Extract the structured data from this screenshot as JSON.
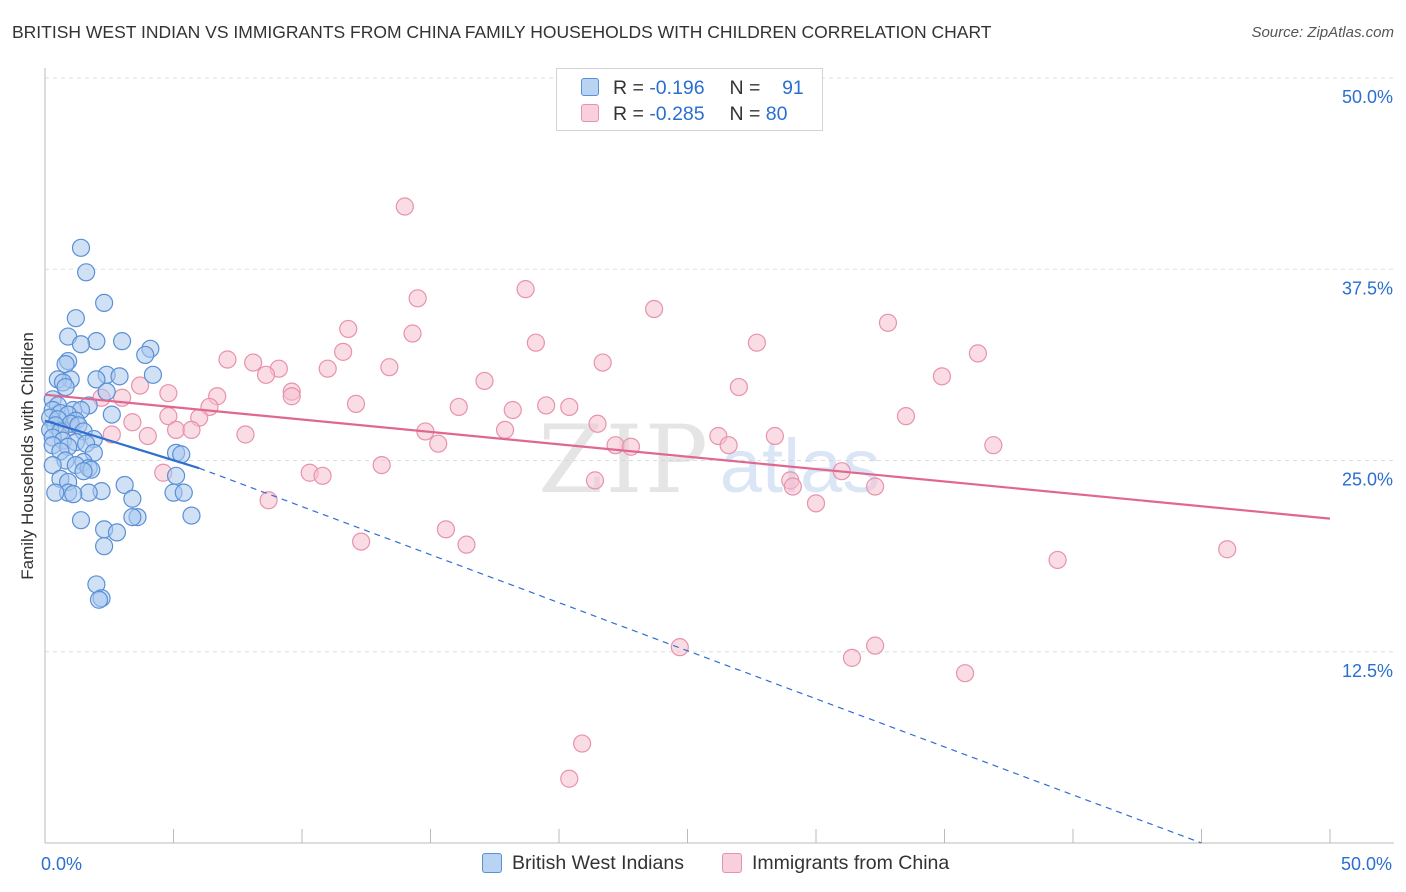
{
  "title": "BRITISH WEST INDIAN VS IMMIGRANTS FROM CHINA FAMILY HOUSEHOLDS WITH CHILDREN CORRELATION CHART",
  "source": "Source: ZipAtlas.com",
  "watermark": {
    "zip": "ZIP",
    "atlas": "atlas"
  },
  "legend": {
    "series1": {
      "r_label": "R = ",
      "r_value": "-0.196",
      "n_label": "N = ",
      "n_value": "91"
    },
    "series2": {
      "r_label": "R = ",
      "r_value": "-0.285",
      "n_label": "N = ",
      "n_value": "80"
    }
  },
  "bottom_legend": {
    "series1": "British West Indians",
    "series2": "Immigrants from China"
  },
  "colors": {
    "blue_fill": "#a9c8ee",
    "blue_stroke": "#5a90d6",
    "blue_line": "#2f6fd0",
    "pink_fill": "#f5c0d0",
    "pink_stroke": "#e892ad",
    "pink_line": "#e0688f",
    "tick_text": "#2a6fd0",
    "grid": "#dddddd"
  },
  "chart_data": {
    "type": "scatter",
    "xlabel": "",
    "ylabel": "Family Households with Children",
    "xlim": [
      0,
      50
    ],
    "ylim": [
      0,
      50
    ],
    "x_tick_labels": [
      {
        "value": 0,
        "label": "0.0%"
      },
      {
        "value": 50,
        "label": "50.0%"
      }
    ],
    "y_tick_labels": [
      {
        "value": 50,
        "label": "50.0%"
      },
      {
        "value": 37.5,
        "label": "37.5%"
      },
      {
        "value": 25,
        "label": "25.0%"
      },
      {
        "value": 12.5,
        "label": "12.5%"
      }
    ],
    "grid": "horizontal dashed",
    "legend_position": "top-center",
    "series": [
      {
        "name": "British West Indians",
        "r": -0.196,
        "n": 91,
        "trend": {
          "x": [
            0,
            6.0
          ],
          "y": [
            27.6,
            24.5
          ]
        },
        "trend_extension": {
          "x": [
            6.0,
            45.0
          ],
          "y": [
            24.5,
            0
          ]
        },
        "points": [
          [
            1.4,
            38.9
          ],
          [
            1.6,
            37.3
          ],
          [
            2.3,
            35.3
          ],
          [
            1.2,
            34.3
          ],
          [
            0.9,
            33.1
          ],
          [
            2.0,
            32.8
          ],
          [
            3.0,
            32.8
          ],
          [
            1.4,
            32.6
          ],
          [
            4.1,
            32.3
          ],
          [
            3.9,
            31.9
          ],
          [
            0.9,
            31.5
          ],
          [
            0.8,
            31.3
          ],
          [
            4.2,
            30.6
          ],
          [
            2.4,
            30.6
          ],
          [
            2.9,
            30.5
          ],
          [
            1.0,
            30.3
          ],
          [
            0.5,
            30.3
          ],
          [
            2.0,
            30.3
          ],
          [
            0.7,
            30.1
          ],
          [
            0.8,
            29.8
          ],
          [
            2.4,
            29.5
          ],
          [
            0.3,
            29.0
          ],
          [
            0.5,
            28.6
          ],
          [
            1.7,
            28.6
          ],
          [
            0.3,
            28.3
          ],
          [
            1.1,
            28.3
          ],
          [
            1.4,
            28.3
          ],
          [
            0.6,
            28.1
          ],
          [
            0.9,
            28.0
          ],
          [
            2.6,
            28.0
          ],
          [
            0.2,
            27.8
          ],
          [
            0.5,
            27.7
          ],
          [
            1.2,
            27.6
          ],
          [
            1.0,
            27.4
          ],
          [
            0.4,
            27.3
          ],
          [
            1.3,
            27.3
          ],
          [
            0.2,
            27.0
          ],
          [
            0.6,
            26.9
          ],
          [
            1.5,
            26.9
          ],
          [
            0.3,
            26.5
          ],
          [
            1.9,
            26.4
          ],
          [
            0.7,
            26.3
          ],
          [
            1.2,
            26.2
          ],
          [
            1.6,
            26.1
          ],
          [
            0.3,
            26.0
          ],
          [
            0.9,
            25.9
          ],
          [
            0.6,
            25.6
          ],
          [
            1.9,
            25.5
          ],
          [
            5.1,
            25.5
          ],
          [
            5.3,
            25.4
          ],
          [
            0.8,
            25.0
          ],
          [
            1.5,
            24.9
          ],
          [
            1.2,
            24.7
          ],
          [
            0.3,
            24.7
          ],
          [
            1.7,
            24.5
          ],
          [
            1.8,
            24.4
          ],
          [
            1.5,
            24.3
          ],
          [
            5.1,
            24.0
          ],
          [
            0.6,
            23.8
          ],
          [
            0.9,
            23.6
          ],
          [
            3.1,
            23.4
          ],
          [
            2.2,
            23.0
          ],
          [
            0.9,
            22.9
          ],
          [
            0.4,
            22.9
          ],
          [
            1.7,
            22.9
          ],
          [
            5.0,
            22.9
          ],
          [
            5.4,
            22.9
          ],
          [
            1.1,
            22.8
          ],
          [
            3.4,
            22.5
          ],
          [
            5.7,
            21.4
          ],
          [
            3.6,
            21.3
          ],
          [
            3.4,
            21.3
          ],
          [
            1.4,
            21.1
          ],
          [
            2.3,
            20.5
          ],
          [
            2.8,
            20.3
          ],
          [
            2.3,
            19.4
          ],
          [
            2.0,
            16.9
          ],
          [
            2.2,
            16.0
          ],
          [
            2.1,
            15.9
          ]
        ]
      },
      {
        "name": "Immigrants from China",
        "r": -0.285,
        "n": 80,
        "trend": {
          "x": [
            0,
            50
          ],
          "y": [
            29.3,
            21.2
          ]
        },
        "points": [
          [
            14.0,
            41.6
          ],
          [
            18.7,
            36.2
          ],
          [
            14.5,
            35.6
          ],
          [
            23.7,
            34.9
          ],
          [
            32.8,
            34.0
          ],
          [
            11.8,
            33.6
          ],
          [
            14.3,
            33.3
          ],
          [
            19.1,
            32.7
          ],
          [
            27.7,
            32.7
          ],
          [
            11.6,
            32.1
          ],
          [
            36.3,
            32.0
          ],
          [
            7.1,
            31.6
          ],
          [
            21.7,
            31.4
          ],
          [
            8.1,
            31.4
          ],
          [
            13.4,
            31.1
          ],
          [
            11.0,
            31.0
          ],
          [
            9.1,
            31.0
          ],
          [
            8.6,
            30.6
          ],
          [
            34.9,
            30.5
          ],
          [
            17.1,
            30.2
          ],
          [
            27.0,
            29.8
          ],
          [
            3.7,
            29.9
          ],
          [
            9.6,
            29.5
          ],
          [
            4.8,
            29.4
          ],
          [
            6.7,
            29.2
          ],
          [
            9.6,
            29.2
          ],
          [
            2.2,
            29.1
          ],
          [
            3.0,
            29.1
          ],
          [
            12.1,
            28.7
          ],
          [
            6.4,
            28.5
          ],
          [
            20.4,
            28.5
          ],
          [
            19.5,
            28.6
          ],
          [
            16.1,
            28.5
          ],
          [
            18.2,
            28.3
          ],
          [
            4.8,
            27.9
          ],
          [
            6.0,
            27.8
          ],
          [
            33.5,
            27.9
          ],
          [
            3.4,
            27.5
          ],
          [
            21.5,
            27.4
          ],
          [
            1.0,
            27.2
          ],
          [
            5.1,
            27.0
          ],
          [
            5.7,
            27.0
          ],
          [
            17.9,
            27.0
          ],
          [
            14.8,
            26.9
          ],
          [
            2.6,
            26.7
          ],
          [
            26.2,
            26.6
          ],
          [
            4.0,
            26.6
          ],
          [
            7.8,
            26.7
          ],
          [
            28.4,
            26.6
          ],
          [
            15.3,
            26.1
          ],
          [
            22.2,
            26.0
          ],
          [
            26.6,
            26.0
          ],
          [
            36.9,
            26.0
          ],
          [
            22.8,
            25.9
          ],
          [
            13.1,
            24.7
          ],
          [
            31.0,
            24.3
          ],
          [
            4.6,
            24.2
          ],
          [
            10.3,
            24.2
          ],
          [
            10.8,
            24.0
          ],
          [
            21.4,
            23.7
          ],
          [
            29.0,
            23.7
          ],
          [
            29.1,
            23.3
          ],
          [
            32.3,
            23.3
          ],
          [
            8.7,
            22.4
          ],
          [
            30.0,
            22.2
          ],
          [
            15.6,
            20.5
          ],
          [
            12.3,
            19.7
          ],
          [
            16.4,
            19.5
          ],
          [
            46.0,
            19.2
          ],
          [
            39.4,
            18.5
          ],
          [
            24.7,
            12.8
          ],
          [
            31.4,
            12.1
          ],
          [
            32.3,
            12.9
          ],
          [
            35.8,
            11.1
          ],
          [
            20.9,
            6.5
          ],
          [
            20.4,
            4.2
          ]
        ]
      }
    ]
  }
}
